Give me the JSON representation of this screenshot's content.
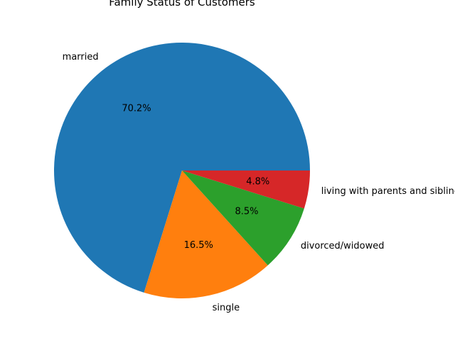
{
  "chart_data": {
    "type": "pie",
    "title": "Family Status of Customers",
    "slices": [
      {
        "label": "married",
        "percent": 70.2,
        "pct_text": "70.2%",
        "color": "#1f77b4"
      },
      {
        "label": "single",
        "percent": 16.5,
        "pct_text": "16.5%",
        "color": "#ff7f0e"
      },
      {
        "label": "divorced/widowed",
        "percent": 8.5,
        "pct_text": "8.5%",
        "color": "#2ca02c"
      },
      {
        "label": "living with parents and siblings",
        "percent": 4.8,
        "pct_text": "4.8%",
        "color": "#d62728"
      }
    ],
    "start_angle": "east",
    "direction": "counterclockwise",
    "legend": false
  }
}
